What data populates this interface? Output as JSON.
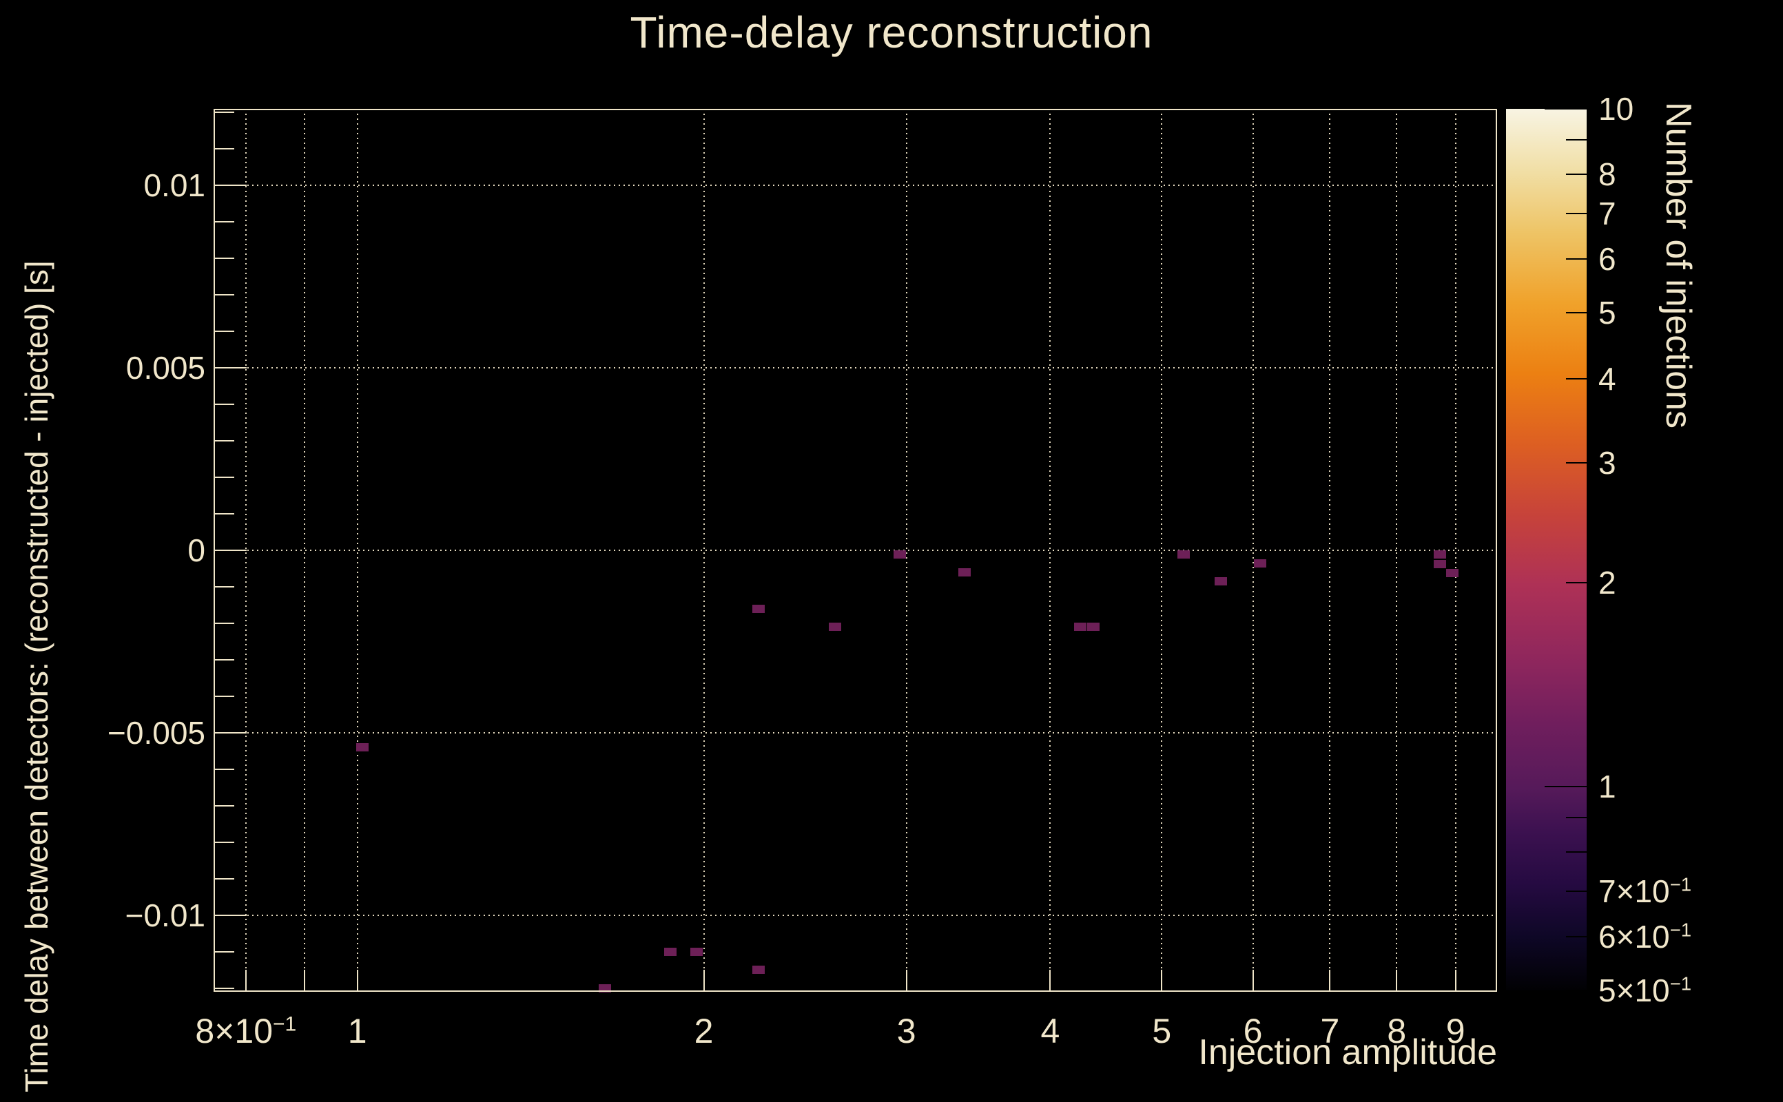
{
  "chart_data": {
    "type": "heatmap",
    "title": "Time-delay reconstruction",
    "xlabel": "Injection amplitude",
    "ylabel": "Time delay between detectors: (reconstructed - injected) [s]",
    "zlabel": "Number of injections",
    "x_scale": "log",
    "xlim": [
      0.75,
      9.78
    ],
    "ylim": [
      -0.0121,
      0.0121
    ],
    "z_scale": "log",
    "zlim": [
      0.5,
      10
    ],
    "grid": true,
    "x_ticks": [
      {
        "v": 0.8,
        "label": "8×10",
        "sup": "−1"
      },
      {
        "v": 0.9,
        "label": ""
      },
      {
        "v": 1,
        "label": "1"
      },
      {
        "v": 2,
        "label": "2"
      },
      {
        "v": 3,
        "label": "3"
      },
      {
        "v": 4,
        "label": "4"
      },
      {
        "v": 5,
        "label": "5"
      },
      {
        "v": 6,
        "label": "6"
      },
      {
        "v": 7,
        "label": "7"
      },
      {
        "v": 8,
        "label": "8"
      },
      {
        "v": 9,
        "label": "9"
      }
    ],
    "y_major_ticks": [
      {
        "v": 0.01,
        "label": "0.01"
      },
      {
        "v": 0.005,
        "label": "0.005"
      },
      {
        "v": 0,
        "label": "0"
      },
      {
        "v": -0.005,
        "label": "−0.005"
      },
      {
        "v": -0.01,
        "label": "−0.01"
      }
    ],
    "y_minor_step": 0.001,
    "z_ticks": [
      {
        "v": 10,
        "label": "10",
        "major": true
      },
      {
        "v": 9,
        "label": ""
      },
      {
        "v": 8,
        "label": "8"
      },
      {
        "v": 7,
        "label": "7"
      },
      {
        "v": 6,
        "label": "6"
      },
      {
        "v": 5,
        "label": "5"
      },
      {
        "v": 4,
        "label": "4"
      },
      {
        "v": 3,
        "label": "3"
      },
      {
        "v": 2,
        "label": "2"
      },
      {
        "v": 1,
        "label": "1",
        "major": true
      },
      {
        "v": 0.9,
        "label": ""
      },
      {
        "v": 0.8,
        "label": ""
      },
      {
        "v": 0.7,
        "label": "7×10",
        "sup": "−1"
      },
      {
        "v": 0.6,
        "label": "6×10",
        "sup": "−1"
      },
      {
        "v": 0.5,
        "label": "5×10",
        "sup": "−1"
      }
    ],
    "points": [
      {
        "x": 1.01,
        "y": -0.0054,
        "count": 1
      },
      {
        "x": 1.64,
        "y": -0.012,
        "count": 1
      },
      {
        "x": 1.87,
        "y": -0.011,
        "count": 1
      },
      {
        "x": 1.97,
        "y": -0.011,
        "count": 1
      },
      {
        "x": 2.23,
        "y": -0.0115,
        "count": 1
      },
      {
        "x": 2.23,
        "y": -0.0016,
        "count": 1
      },
      {
        "x": 2.6,
        "y": -0.0021,
        "count": 1
      },
      {
        "x": 2.96,
        "y": -0.00012,
        "count": 1
      },
      {
        "x": 3.37,
        "y": -0.0006,
        "count": 1
      },
      {
        "x": 4.25,
        "y": -0.0021,
        "count": 1
      },
      {
        "x": 4.36,
        "y": -0.0021,
        "count": 1
      },
      {
        "x": 5.22,
        "y": -0.00012,
        "count": 1
      },
      {
        "x": 5.63,
        "y": -0.00085,
        "count": 1
      },
      {
        "x": 6.09,
        "y": -0.00036,
        "count": 1
      },
      {
        "x": 8.72,
        "y": -0.00012,
        "count": 1
      },
      {
        "x": 8.72,
        "y": -0.00038,
        "count": 1
      },
      {
        "x": 8.94,
        "y": -0.00062,
        "count": 1
      }
    ],
    "colors": {
      "background": "#000000",
      "text": "#f1e7cb",
      "frame": "#efe5c8",
      "grid": "#f0e5c9",
      "bin_count1": "#6d2057",
      "colorbar_tick": "#000000"
    },
    "colormap_stops": [
      [
        0.0,
        "#010103"
      ],
      [
        0.06,
        "#0e0726"
      ],
      [
        0.12,
        "#250a41"
      ],
      [
        0.18,
        "#3c1150"
      ],
      [
        0.23,
        "#561a5a"
      ],
      [
        0.3,
        "#6f1e5d"
      ],
      [
        0.37,
        "#8d265d"
      ],
      [
        0.46,
        "#ae3156"
      ],
      [
        0.54,
        "#c7433a"
      ],
      [
        0.62,
        "#dd5f22"
      ],
      [
        0.7,
        "#ec8012"
      ],
      [
        0.78,
        "#f0a22b"
      ],
      [
        0.86,
        "#eec466"
      ],
      [
        0.93,
        "#f1dfa6"
      ],
      [
        1.0,
        "#f8f4e3"
      ]
    ]
  }
}
